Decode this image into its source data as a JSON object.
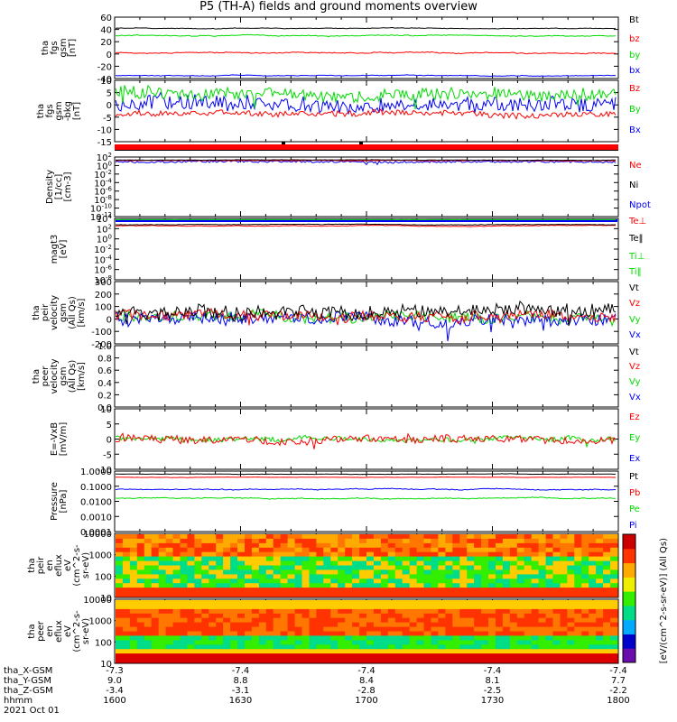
{
  "title": "P5 (TH-A) fields and ground moments overview",
  "footer_date": "2021 Oct 01",
  "eph": {
    "rows": [
      {
        "label": "tha_X-GSM",
        "values": [
          "-7.3",
          "-7.4",
          "-7.4",
          "-7.4",
          "-7.4"
        ]
      },
      {
        "label": "tha_Y-GSM",
        "values": [
          "9.0",
          "8.8",
          "8.4",
          "8.1",
          "7.7"
        ]
      },
      {
        "label": "tha_Z-GSM",
        "values": [
          "-3.4",
          "-3.1",
          "-2.8",
          "-2.5",
          "-2.2"
        ]
      },
      {
        "label": "hhmm",
        "values": [
          "1600",
          "1630",
          "1700",
          "1730",
          "1800"
        ]
      }
    ]
  },
  "colorbar": {
    "title": "[eV/(cm^2-s-sr-eV)] (All Qs)",
    "colors": [
      "#6a0dad",
      "#0000cc",
      "#00aaff",
      "#00dd88",
      "#33ee00",
      "#eeee00",
      "#ffaa00",
      "#ff3300",
      "#cc0000"
    ]
  },
  "chart_data": [
    {
      "type": "line",
      "ylabel": [
        "tha",
        "fgs",
        "gsm",
        "[nT]"
      ],
      "ylim": [
        -40,
        60
      ],
      "yticks": [
        "60",
        "40",
        "20",
        "0",
        "-20",
        "-40"
      ],
      "series": [
        {
          "name": "Bt",
          "color": "#000000",
          "approx": "~43 nT, slowly falling to ~38 nT"
        },
        {
          "name": "bz",
          "color": "#ff0000",
          "approx": "~2 nT"
        },
        {
          "name": "by",
          "color": "#00dd00",
          "approx": "~30 nT, falling to ~22 nT"
        },
        {
          "name": "bx",
          "color": "#0000ff",
          "approx": "~-35 nT, rising to ~-28 nT"
        }
      ]
    },
    {
      "type": "line",
      "ylabel": [
        "tha",
        "fgs",
        "gsm",
        "-bkg",
        "[nT]"
      ],
      "ylim": [
        -18,
        10
      ],
      "yticks": [
        "10",
        "5",
        "0",
        "-5",
        "-10",
        "-15"
      ],
      "series": [
        {
          "name": "Bz",
          "color": "#ff0000"
        },
        {
          "name": "By",
          "color": "#00dd00"
        },
        {
          "name": "Bx",
          "color": "#0000ff"
        }
      ]
    },
    {
      "type": "line",
      "ylabel": [
        "Density",
        "[1/cc]",
        "[cm-3]"
      ],
      "yscale": "log",
      "yticks": [
        "10^2",
        "10^0",
        "10^-2",
        "10^-4",
        "10^-6",
        "10^-8",
        "10^-10",
        "10^-12"
      ],
      "series": [
        {
          "name": "Ne",
          "color": "#ff0000"
        },
        {
          "name": "Ni",
          "color": "#000000"
        },
        {
          "name": "Npot",
          "color": "#0000ff"
        }
      ]
    },
    {
      "type": "line",
      "ylabel": [
        "magt3",
        "[eV]"
      ],
      "yscale": "log",
      "yticks": [
        "10^4",
        "10^2",
        "10^0",
        "10^-2",
        "10^-4",
        "10^-6",
        "10^-8"
      ],
      "series": [
        {
          "name": "Te⊥",
          "color": "#ff0000"
        },
        {
          "name": "Te‖",
          "color": "#000000"
        },
        {
          "name": "Ti⊥",
          "color": "#00dd00"
        },
        {
          "name": "Ti‖",
          "color": "#00dd00"
        }
      ]
    },
    {
      "type": "line",
      "ylabel": [
        "tha",
        "peir",
        "velocity",
        "gsm",
        "(All Qs)",
        "[km/s]"
      ],
      "ylim": [
        -200,
        300
      ],
      "yticks": [
        "300",
        "200",
        "100",
        "0",
        "-100",
        "-200"
      ],
      "series": [
        {
          "name": "Vt",
          "color": "#000000"
        },
        {
          "name": "Vz",
          "color": "#ff0000"
        },
        {
          "name": "Vy",
          "color": "#00dd00"
        },
        {
          "name": "Vx",
          "color": "#0000ff"
        }
      ]
    },
    {
      "type": "line",
      "ylabel": [
        "tha",
        "peer",
        "velocity",
        "gsm",
        "(All Qs)",
        "[km/s]"
      ],
      "ylim": [
        0,
        1
      ],
      "yticks": [
        "1.0",
        "0.8",
        "0.6",
        "0.4",
        "0.2",
        "0.0"
      ],
      "series": [
        {
          "name": "Vt",
          "color": "#000000"
        },
        {
          "name": "Vz",
          "color": "#ff0000"
        },
        {
          "name": "Vy",
          "color": "#00dd00"
        },
        {
          "name": "Vx",
          "color": "#0000ff"
        }
      ]
    },
    {
      "type": "line",
      "ylabel": [
        "E=-VxB",
        "[mV/m]"
      ],
      "ylim": [
        -10,
        10
      ],
      "yticks": [
        "10",
        "5",
        "0",
        "-5",
        "-10"
      ],
      "series": [
        {
          "name": "Ez",
          "color": "#ff0000"
        },
        {
          "name": "Ey",
          "color": "#00dd00"
        },
        {
          "name": "Ex",
          "color": "#0000ff"
        }
      ]
    },
    {
      "type": "line",
      "ylabel": [
        "Pressure",
        "[nPa]"
      ],
      "yscale": "log",
      "yticks": [
        "1.0000",
        "0.1000",
        "0.0100",
        "0.0010",
        "0.0001"
      ],
      "series": [
        {
          "name": "Pt",
          "color": "#000000"
        },
        {
          "name": "Pb",
          "color": "#ff0000"
        },
        {
          "name": "Pe",
          "color": "#00dd00"
        },
        {
          "name": "Pi",
          "color": "#0000ff"
        }
      ]
    },
    {
      "type": "heatmap",
      "ylabel": [
        "tha",
        "peir",
        "en",
        "eflux",
        "eV",
        "(cm^2-s-",
        "sr-eV)"
      ],
      "yscale": "log",
      "yticks": [
        "10000",
        "1000",
        "100",
        "10"
      ]
    },
    {
      "type": "heatmap",
      "ylabel": [
        "tha",
        "peer",
        "en",
        "eflux",
        "eV",
        "(cm^2-s-",
        "sr-eV)"
      ],
      "yscale": "log",
      "yticks": [
        "10000",
        "1000",
        "100",
        "10"
      ]
    }
  ]
}
